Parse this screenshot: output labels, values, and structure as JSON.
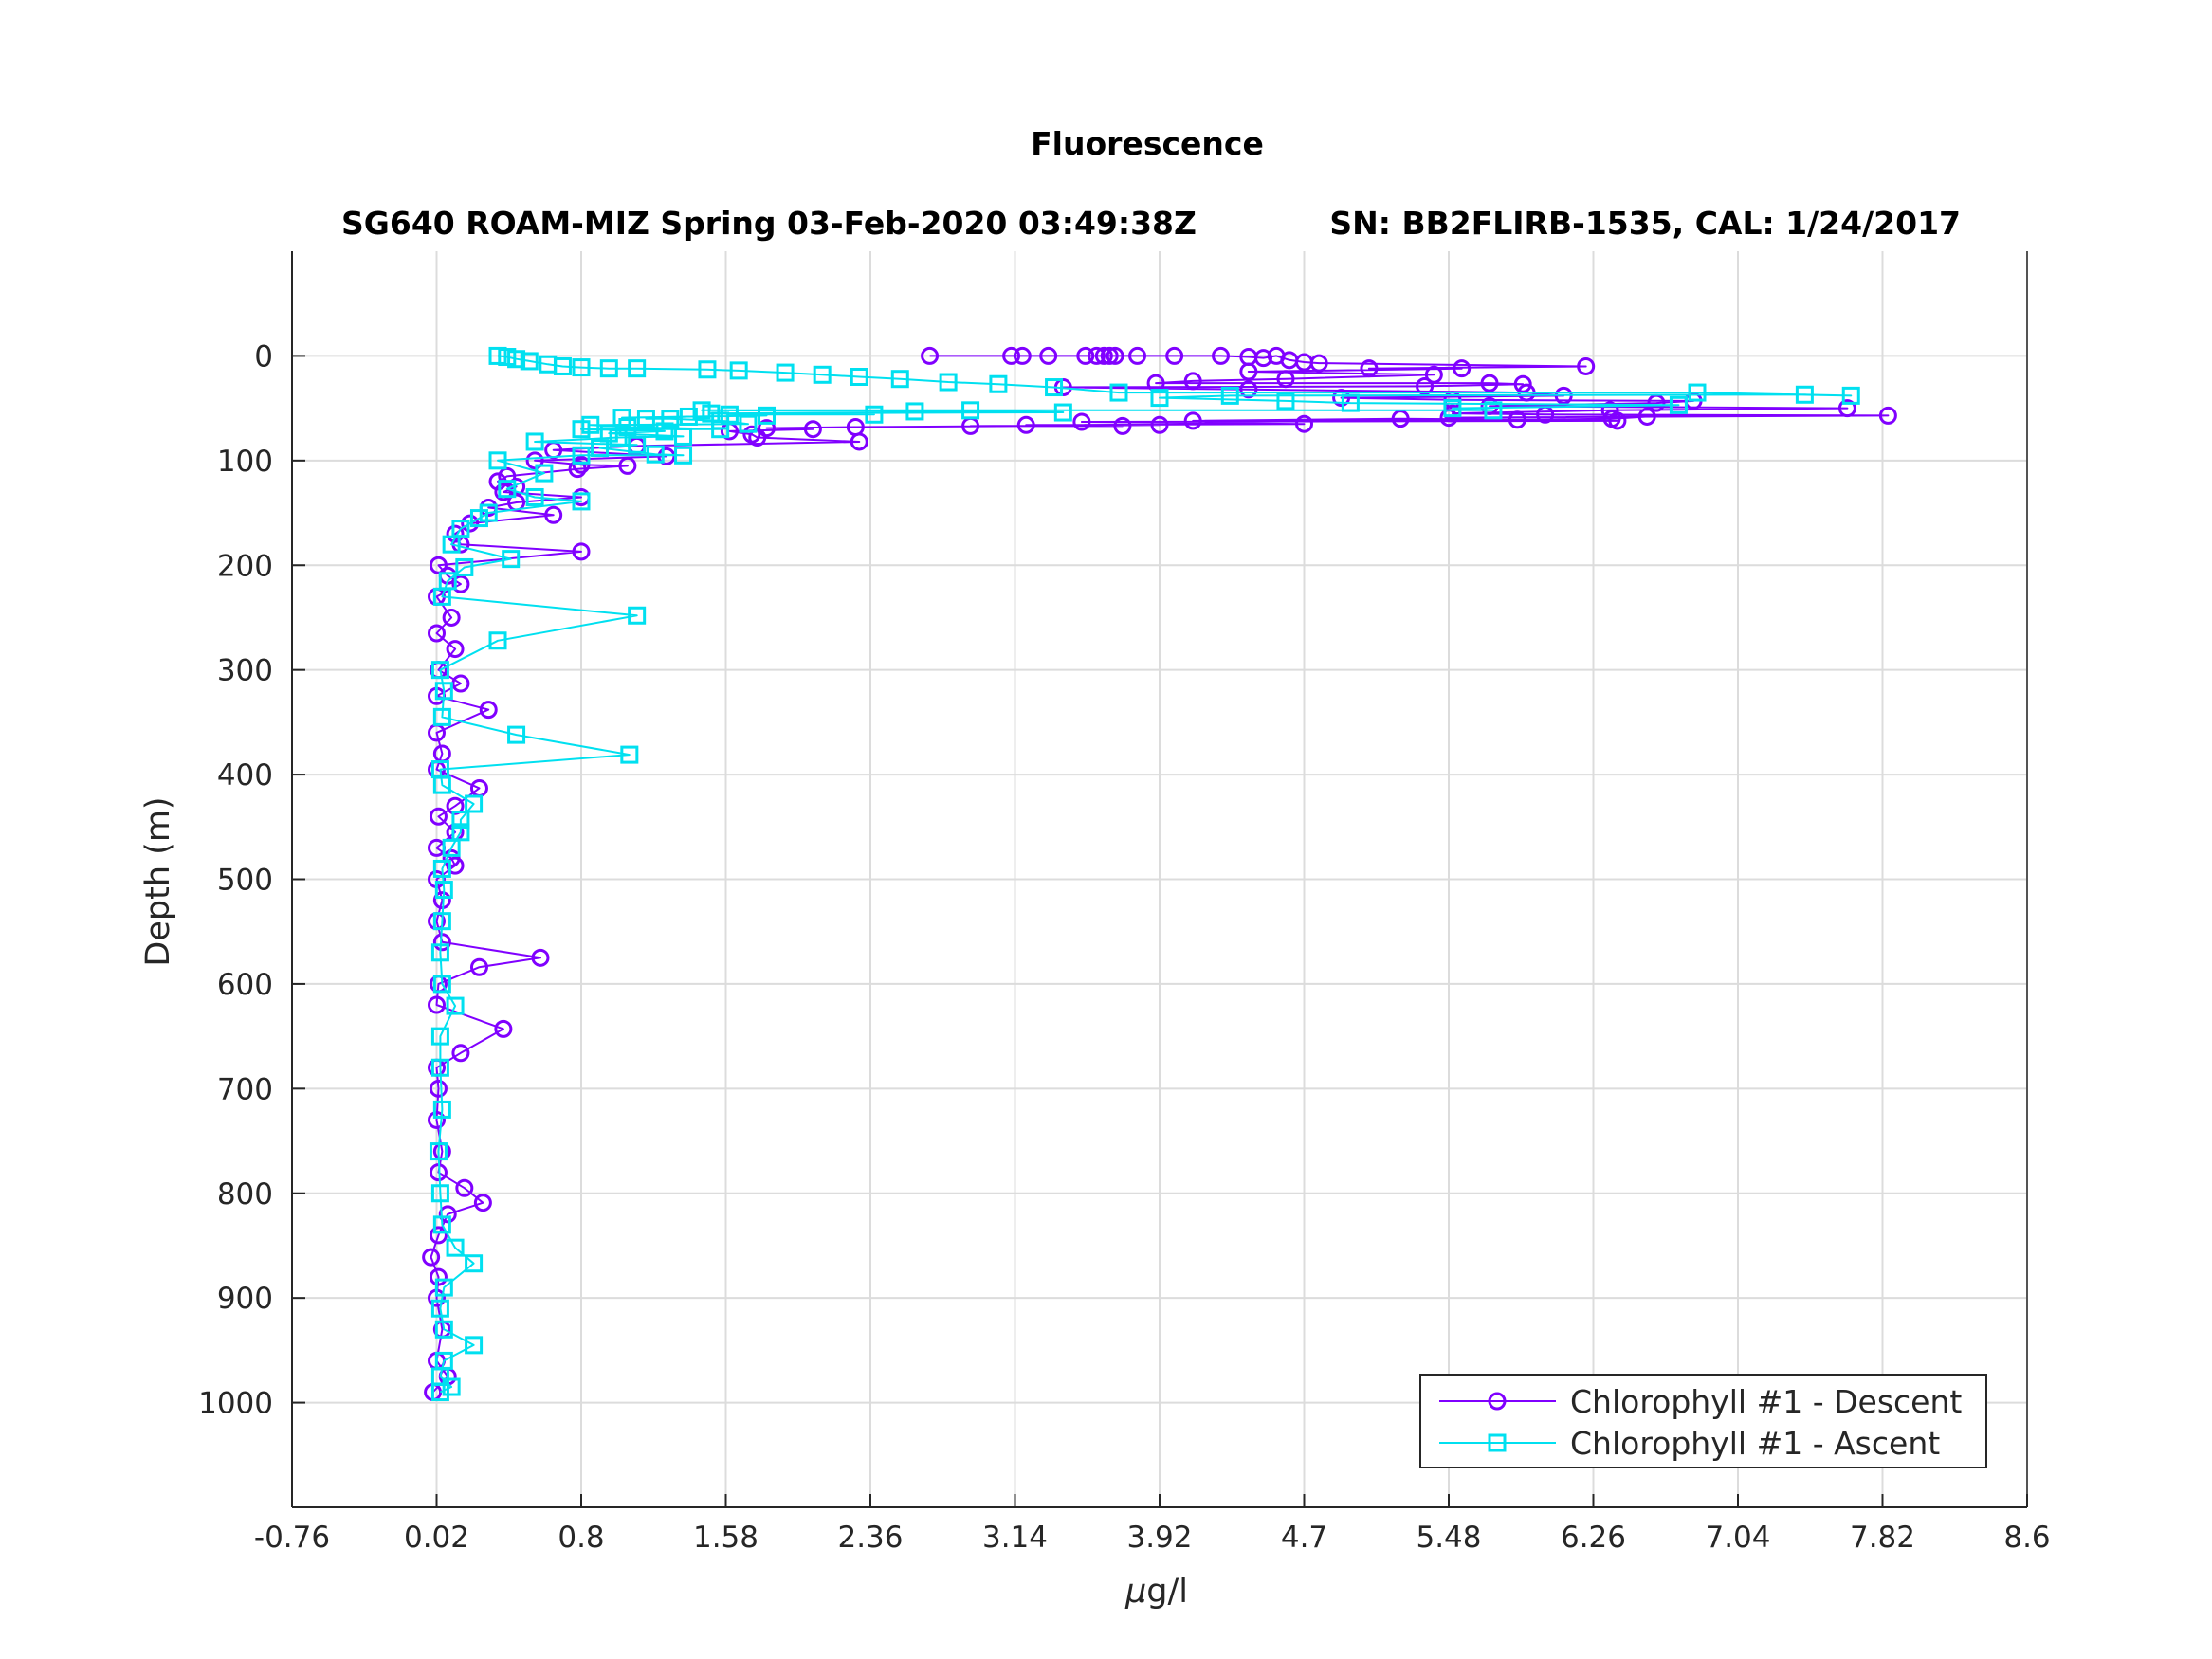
{
  "chart_data": {
    "type": "line",
    "title": "Fluorescence",
    "subtitle_left": "SG640 ROAM-MIZ Spring 03-Feb-2020 03:49:38Z",
    "subtitle_right": "SN: BB2FLIRB-1535, CAL: 1/24/2017",
    "xlabel_mu": "μ",
    "xlabel_rest": "g/l",
    "ylabel": "Depth (m)",
    "xlim": [
      -0.76,
      8.6
    ],
    "ylim": [
      -100,
      1100
    ],
    "y_reversed": true,
    "grid": true,
    "legend_position": "bottom-right",
    "x_ticks": [
      "-0.76",
      "0.02",
      "0.8",
      "1.58",
      "2.36",
      "3.14",
      "3.92",
      "4.7",
      "5.48",
      "6.26",
      "7.04",
      "7.82",
      "8.6"
    ],
    "x_tick_values": [
      -0.76,
      0.02,
      0.8,
      1.58,
      2.36,
      3.14,
      3.92,
      4.7,
      5.48,
      6.26,
      7.04,
      7.82,
      8.6
    ],
    "y_ticks": [
      "0",
      "100",
      "200",
      "300",
      "400",
      "500",
      "600",
      "700",
      "800",
      "900",
      "1000"
    ],
    "y_tick_values": [
      0,
      100,
      200,
      300,
      400,
      500,
      600,
      700,
      800,
      900,
      1000
    ],
    "series": [
      {
        "name": "Chlorophyll #1 - Descent",
        "color": "#8000ff",
        "marker": "circle",
        "points": [
          [
            2.68,
            0
          ],
          [
            3.12,
            0
          ],
          [
            3.18,
            0
          ],
          [
            3.32,
            0
          ],
          [
            3.52,
            0
          ],
          [
            3.58,
            0
          ],
          [
            3.62,
            0
          ],
          [
            3.65,
            0
          ],
          [
            3.68,
            0
          ],
          [
            3.8,
            0
          ],
          [
            4.0,
            0
          ],
          [
            4.25,
            0
          ],
          [
            4.4,
            1
          ],
          [
            4.48,
            2
          ],
          [
            4.55,
            0
          ],
          [
            4.62,
            4
          ],
          [
            4.7,
            6
          ],
          [
            4.78,
            7
          ],
          [
            6.22,
            10
          ],
          [
            5.05,
            12
          ],
          [
            5.55,
            12
          ],
          [
            4.4,
            15
          ],
          [
            5.4,
            18
          ],
          [
            4.6,
            22
          ],
          [
            4.1,
            24
          ],
          [
            3.9,
            26
          ],
          [
            5.7,
            26
          ],
          [
            5.88,
            27
          ],
          [
            5.35,
            29
          ],
          [
            3.4,
            30
          ],
          [
            4.4,
            32
          ],
          [
            5.9,
            35
          ],
          [
            6.1,
            38
          ],
          [
            4.9,
            40
          ],
          [
            5.5,
            42
          ],
          [
            6.8,
            43
          ],
          [
            6.6,
            45
          ],
          [
            5.7,
            48
          ],
          [
            7.63,
            50
          ],
          [
            6.35,
            52
          ],
          [
            5.5,
            55
          ],
          [
            6.0,
            56
          ],
          [
            7.85,
            57
          ],
          [
            5.48,
            59
          ],
          [
            6.55,
            58
          ],
          [
            6.36,
            60
          ],
          [
            5.85,
            61
          ],
          [
            4.1,
            62
          ],
          [
            5.22,
            60
          ],
          [
            6.39,
            62
          ],
          [
            3.5,
            63
          ],
          [
            4.7,
            65
          ],
          [
            3.2,
            66
          ],
          [
            3.72,
            67
          ],
          [
            2.9,
            67
          ],
          [
            3.92,
            66
          ],
          [
            2.28,
            68
          ],
          [
            1.8,
            69
          ],
          [
            2.05,
            70
          ],
          [
            1.6,
            72
          ],
          [
            1.72,
            75
          ],
          [
            1.75,
            78
          ],
          [
            2.3,
            82
          ],
          [
            1.1,
            86
          ],
          [
            0.65,
            90
          ],
          [
            1.26,
            96
          ],
          [
            0.55,
            100
          ],
          [
            0.8,
            104
          ],
          [
            1.05,
            105
          ],
          [
            0.78,
            108
          ],
          [
            0.4,
            115
          ],
          [
            0.35,
            120
          ],
          [
            0.45,
            125
          ],
          [
            0.38,
            130
          ],
          [
            0.8,
            135
          ],
          [
            0.45,
            140
          ],
          [
            0.3,
            145
          ],
          [
            0.65,
            152
          ],
          [
            0.2,
            160
          ],
          [
            0.12,
            170
          ],
          [
            0.15,
            180
          ],
          [
            0.8,
            187
          ],
          [
            0.03,
            200
          ],
          [
            0.08,
            210
          ],
          [
            0.15,
            218
          ],
          [
            0.02,
            230
          ],
          [
            0.1,
            250
          ],
          [
            0.02,
            265
          ],
          [
            0.12,
            280
          ],
          [
            0.03,
            300
          ],
          [
            0.15,
            313
          ],
          [
            0.02,
            325
          ],
          [
            0.3,
            338
          ],
          [
            0.02,
            360
          ],
          [
            0.05,
            380
          ],
          [
            0.02,
            395
          ],
          [
            0.25,
            413
          ],
          [
            0.12,
            430
          ],
          [
            0.03,
            440
          ],
          [
            0.12,
            455
          ],
          [
            0.02,
            470
          ],
          [
            0.1,
            480
          ],
          [
            0.12,
            487
          ],
          [
            0.02,
            500
          ],
          [
            0.05,
            520
          ],
          [
            0.02,
            540
          ],
          [
            0.05,
            560
          ],
          [
            0.58,
            575
          ],
          [
            0.25,
            584
          ],
          [
            0.03,
            600
          ],
          [
            0.02,
            620
          ],
          [
            0.38,
            643
          ],
          [
            0.15,
            666
          ],
          [
            0.02,
            680
          ],
          [
            0.03,
            700
          ],
          [
            0.02,
            730
          ],
          [
            0.05,
            760
          ],
          [
            0.03,
            780
          ],
          [
            0.17,
            795
          ],
          [
            0.27,
            809
          ],
          [
            0.08,
            820
          ],
          [
            0.03,
            840
          ],
          [
            -0.01,
            861
          ],
          [
            0.03,
            880
          ],
          [
            0.02,
            900
          ],
          [
            0.05,
            930
          ],
          [
            0.02,
            960
          ],
          [
            0.08,
            975
          ],
          [
            0.0,
            990
          ]
        ]
      },
      {
        "name": "Chlorophyll #1 - Ascent",
        "color": "#00e0f0",
        "marker": "square",
        "points": [
          [
            0.04,
            990
          ],
          [
            0.1,
            985
          ],
          [
            0.04,
            975
          ],
          [
            0.06,
            960
          ],
          [
            0.22,
            945
          ],
          [
            0.06,
            930
          ],
          [
            0.04,
            910
          ],
          [
            0.06,
            890
          ],
          [
            0.22,
            867
          ],
          [
            0.12,
            852
          ],
          [
            0.05,
            830
          ],
          [
            0.04,
            800
          ],
          [
            0.03,
            760
          ],
          [
            0.05,
            720
          ],
          [
            0.04,
            680
          ],
          [
            0.04,
            650
          ],
          [
            0.12,
            621
          ],
          [
            0.05,
            600
          ],
          [
            0.04,
            570
          ],
          [
            0.05,
            540
          ],
          [
            0.06,
            510
          ],
          [
            0.05,
            490
          ],
          [
            0.1,
            470
          ],
          [
            0.15,
            455
          ],
          [
            0.15,
            443
          ],
          [
            0.22,
            428
          ],
          [
            0.05,
            410
          ],
          [
            0.04,
            395
          ],
          [
            1.06,
            381
          ],
          [
            0.45,
            362
          ],
          [
            0.05,
            345
          ],
          [
            0.06,
            320
          ],
          [
            0.04,
            300
          ],
          [
            0.35,
            272
          ],
          [
            1.1,
            248
          ],
          [
            0.05,
            230
          ],
          [
            0.08,
            215
          ],
          [
            0.17,
            202
          ],
          [
            0.42,
            194
          ],
          [
            0.1,
            180
          ],
          [
            0.15,
            165
          ],
          [
            0.25,
            155
          ],
          [
            0.3,
            150
          ],
          [
            0.8,
            139
          ],
          [
            0.55,
            135
          ],
          [
            0.4,
            127
          ],
          [
            0.6,
            112
          ],
          [
            0.35,
            100
          ],
          [
            0.8,
            95
          ],
          [
            1.35,
            95
          ],
          [
            1.2,
            94
          ],
          [
            0.9,
            88
          ],
          [
            1.1,
            85
          ],
          [
            0.55,
            82
          ],
          [
            1.0,
            78
          ],
          [
            1.35,
            77
          ],
          [
            0.95,
            74
          ],
          [
            1.25,
            72
          ],
          [
            0.8,
            70
          ],
          [
            1.55,
            70
          ],
          [
            1.05,
            68
          ],
          [
            0.85,
            66
          ],
          [
            1.7,
            65
          ],
          [
            1.55,
            62
          ],
          [
            1.28,
            60
          ],
          [
            1.15,
            60
          ],
          [
            1.38,
            58
          ],
          [
            1.02,
            59
          ],
          [
            1.8,
            57
          ],
          [
            1.6,
            56
          ],
          [
            2.38,
            56
          ],
          [
            1.5,
            55
          ],
          [
            3.4,
            54
          ],
          [
            2.6,
            53
          ],
          [
            1.45,
            52
          ],
          [
            2.9,
            52
          ],
          [
            5.72,
            52
          ],
          [
            5.5,
            50
          ],
          [
            6.72,
            47
          ],
          [
            4.95,
            45
          ],
          [
            4.6,
            43
          ],
          [
            3.92,
            40
          ],
          [
            4.3,
            38
          ],
          [
            7.4,
            37
          ],
          [
            7.65,
            38
          ],
          [
            6.82,
            35
          ],
          [
            3.7,
            35
          ],
          [
            3.35,
            30
          ],
          [
            3.05,
            27
          ],
          [
            2.78,
            25
          ],
          [
            2.52,
            22
          ],
          [
            2.3,
            20
          ],
          [
            2.1,
            18
          ],
          [
            1.9,
            16
          ],
          [
            1.65,
            14
          ],
          [
            1.48,
            13
          ],
          [
            1.1,
            12
          ],
          [
            0.95,
            12
          ],
          [
            0.8,
            11
          ],
          [
            0.7,
            10
          ],
          [
            0.62,
            8
          ],
          [
            0.52,
            5
          ],
          [
            0.45,
            3
          ],
          [
            0.4,
            1
          ],
          [
            0.35,
            0
          ]
        ]
      }
    ]
  }
}
